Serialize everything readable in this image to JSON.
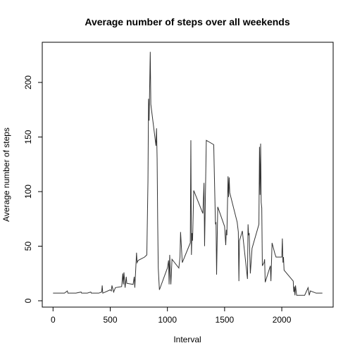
{
  "chart_data": {
    "type": "line",
    "title": "Average number of steps over all weekends",
    "x_label": "Interval",
    "y_label": "Average number of steps",
    "x": [
      0,
      30,
      60,
      100,
      125,
      130,
      200,
      245,
      250,
      300,
      330,
      335,
      400,
      425,
      430,
      435,
      500,
      510,
      515,
      530,
      545,
      600,
      610,
      615,
      620,
      630,
      640,
      645,
      700,
      710,
      715,
      730,
      735,
      745,
      800,
      820,
      830,
      835,
      840,
      850,
      855,
      900,
      905,
      910,
      915,
      920,
      930,
      1000,
      1010,
      1015,
      1020,
      1030,
      1040,
      1100,
      1110,
      1115,
      1130,
      1200,
      1205,
      1210,
      1215,
      1220,
      1230,
      1310,
      1320,
      1325,
      1340,
      1405,
      1410,
      1420,
      1425,
      1430,
      1440,
      1500,
      1510,
      1515,
      1520,
      1530,
      1535,
      1540,
      1545,
      1610,
      1620,
      1625,
      1630,
      1650,
      1655,
      1700,
      1705,
      1710,
      1715,
      1725,
      1740,
      1800,
      1805,
      1810,
      1815,
      1820,
      1825,
      1830,
      1845,
      1850,
      1855,
      1900,
      1905,
      1915,
      1940,
      1950,
      2000,
      2005,
      2010,
      2015,
      2020,
      2100,
      2105,
      2110,
      2115,
      2120,
      2130,
      2200,
      2230,
      2240,
      2250,
      2300,
      2355
    ],
    "series": [
      {
        "name": "Average number of steps",
        "color": "#333333",
        "values": [
          7,
          7,
          7,
          7,
          9,
          7,
          7,
          8,
          7,
          7,
          8,
          7,
          7,
          8,
          14,
          7,
          10,
          9,
          14,
          8,
          12,
          13,
          25,
          15,
          26,
          12,
          22,
          16,
          15,
          22,
          12,
          44,
          35,
          37,
          40,
          42,
          110,
          185,
          165,
          228,
          180,
          142,
          158,
          130,
          72,
          30,
          10,
          30,
          37,
          15,
          42,
          15,
          38,
          30,
          40,
          63,
          35,
          53,
          147,
          42,
          62,
          55,
          101,
          80,
          108,
          50,
          147,
          143,
          118,
          70,
          72,
          24,
          86,
          68,
          51,
          65,
          60,
          114,
          95,
          113,
          99,
          72,
          63,
          18,
          55,
          62,
          64,
          20,
          70,
          60,
          62,
          25,
          48,
          70,
          141,
          97,
          144,
          90,
          85,
          32,
          35,
          38,
          17,
          32,
          18,
          53,
          43,
          40,
          40,
          57,
          35,
          40,
          28,
          18,
          8,
          13,
          5,
          14,
          5,
          5,
          12,
          5,
          9,
          7,
          7
        ]
      }
    ],
    "xlim": [
      -94.2,
      2449.2
    ],
    "ylim": [
      -5.8,
      236.8
    ],
    "xticks": [
      0,
      500,
      1000,
      1500,
      2000
    ],
    "yticks": [
      0,
      50,
      100,
      150,
      200
    ]
  }
}
